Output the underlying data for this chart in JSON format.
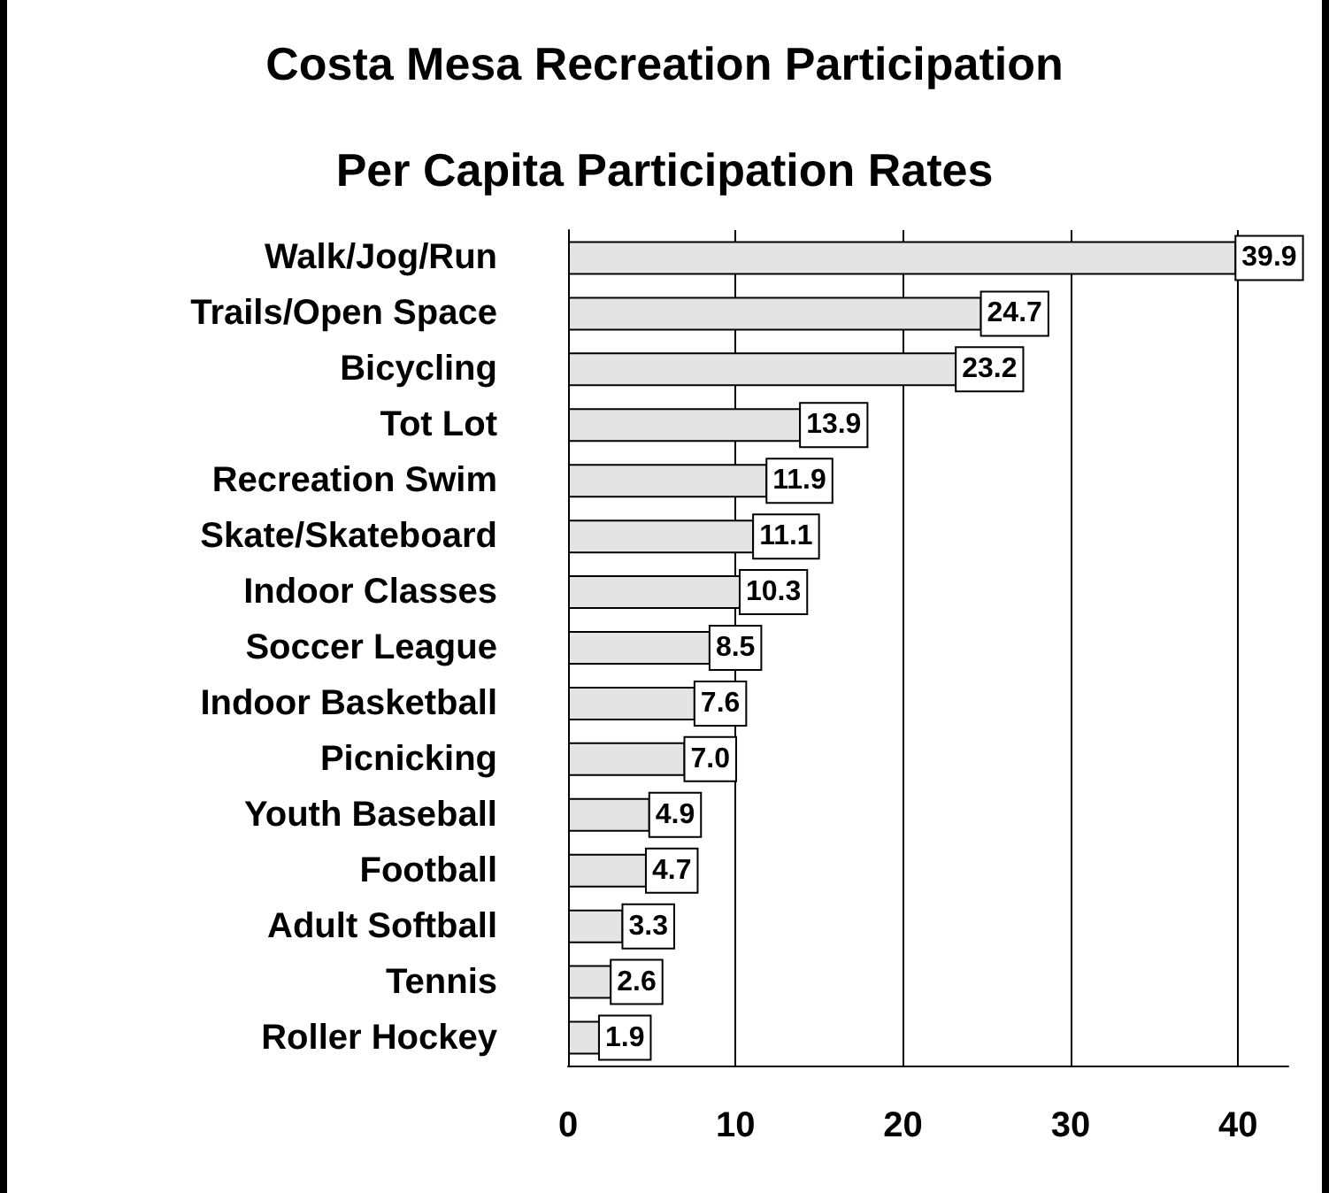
{
  "chart_data": {
    "type": "bar",
    "orientation": "horizontal",
    "title": "Costa Mesa Recreation Participation",
    "subtitle": "Per Capita Participation Rates",
    "categories": [
      "Walk/Jog/Run",
      "Trails/Open Space",
      "Bicycling",
      "Tot Lot",
      "Recreation Swim",
      "Skate/Skateboard",
      "Indoor Classes",
      "Soccer League",
      "Indoor Basketball",
      "Picnicking",
      "Youth Baseball",
      "Football",
      "Adult Softball",
      "Tennis",
      "Roller Hockey"
    ],
    "values": [
      39.9,
      24.7,
      23.2,
      13.9,
      11.9,
      11.1,
      10.3,
      8.5,
      7.6,
      7.0,
      4.9,
      4.7,
      3.3,
      2.6,
      1.9
    ],
    "value_labels": [
      "39.9",
      "24.7",
      "23.2",
      "13.9",
      "11.9",
      "11.1",
      "10.3",
      "8.5",
      "7.6",
      "7.0",
      "4.9",
      "4.7",
      "3.3",
      "2.6",
      "1.9"
    ],
    "color": "#e4e4e4",
    "xlim": [
      0,
      43
    ],
    "xticks": [
      0,
      10,
      20,
      30,
      40
    ],
    "grid": "x"
  }
}
